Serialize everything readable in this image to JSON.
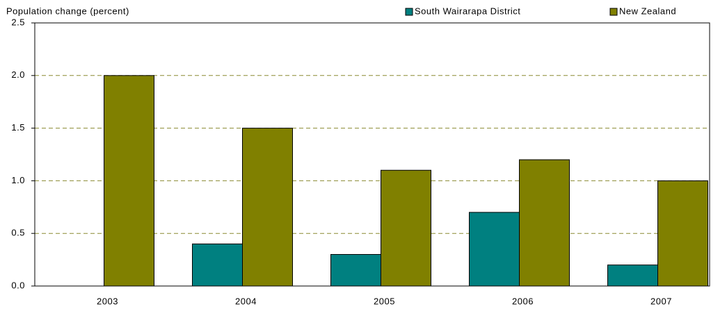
{
  "chart_data": {
    "type": "bar",
    "y_axis_label": "Population change (percent)",
    "categories": [
      "2003",
      "2004",
      "2005",
      "2006",
      "2007"
    ],
    "series": [
      {
        "name": "South Wairarapa District",
        "color": "#008080",
        "values": [
          0,
          0.4,
          0.3,
          0.7,
          0.2
        ]
      },
      {
        "name": "New Zealand",
        "color": "#808000",
        "values": [
          2.0,
          1.5,
          1.1,
          1.2,
          1.0
        ]
      }
    ],
    "ylim": [
      0,
      2.5
    ],
    "yticks": [
      {
        "value": 0,
        "label": "0.0"
      },
      {
        "value": 0.5,
        "label": "0.5"
      },
      {
        "value": 1,
        "label": "1.0"
      },
      {
        "value": 1.5,
        "label": "1.5"
      },
      {
        "value": 2,
        "label": "2.0"
      },
      {
        "value": 2.5,
        "label": "2.5"
      }
    ],
    "grid": true,
    "legend": "top-right"
  }
}
